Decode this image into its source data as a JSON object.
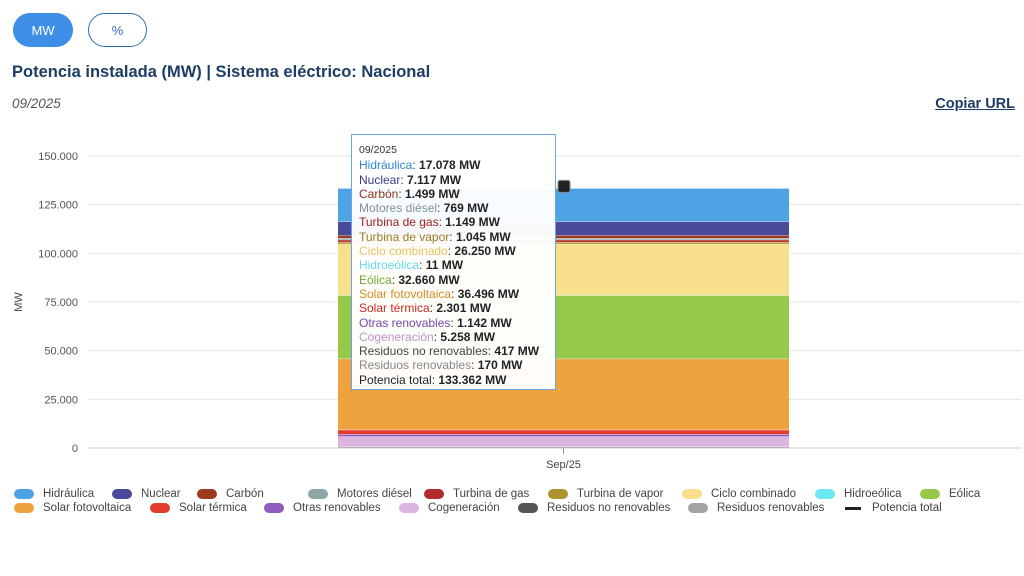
{
  "controls": {
    "mw_label": "MW",
    "pct_label": "%"
  },
  "header": {
    "title": "Potencia instalada (MW) | Sistema eléctrico: Nacional",
    "date": "09/2025",
    "copy_url": "Copiar URL"
  },
  "tooltip": {
    "date": "09/2025",
    "rows": [
      {
        "name": "Hidráulica",
        "value": "17.078 MW"
      },
      {
        "name": "Nuclear",
        "value": "7.117 MW"
      },
      {
        "name": "Carbón",
        "value": "1.499 MW"
      },
      {
        "name": "Motores diésel",
        "value": "769 MW"
      },
      {
        "name": "Turbina de gas",
        "value": "1.149 MW"
      },
      {
        "name": "Turbina de vapor",
        "value": "1.045 MW"
      },
      {
        "name": "Ciclo combinado",
        "value": "26.250 MW"
      },
      {
        "name": "Hidroeólica",
        "value": "11 MW"
      },
      {
        "name": "Eólica",
        "value": "32.660 MW"
      },
      {
        "name": "Solar fotovoltaica",
        "value": "36.496 MW"
      },
      {
        "name": "Solar térmica",
        "value": "2.301 MW"
      },
      {
        "name": "Otras renovables",
        "value": "1.142 MW"
      },
      {
        "name": "Cogeneración",
        "value": "5.258 MW"
      },
      {
        "name": "Residuos no renovables",
        "value": "417 MW"
      },
      {
        "name": "Residuos renovables",
        "value": "170 MW"
      },
      {
        "name": "Potencia total",
        "value": "133.362 MW"
      }
    ]
  },
  "chart_data": {
    "type": "bar",
    "stacked": true,
    "categories": [
      "Sep/25"
    ],
    "ylabel": "MW",
    "ylim": [
      0,
      150000
    ],
    "yticks": [
      "0",
      "25.000",
      "50.000",
      "75.000",
      "100.000",
      "125.000",
      "150.000"
    ],
    "ytick_values": [
      0,
      25000,
      50000,
      75000,
      100000,
      125000,
      150000
    ],
    "grid": true,
    "legend_position": "bottom",
    "series": [
      {
        "name": "Hidráulica",
        "values": [
          17078
        ],
        "color": "#4ea3e5"
      },
      {
        "name": "Nuclear",
        "values": [
          7117
        ],
        "color": "#4a4a9c"
      },
      {
        "name": "Carbón",
        "values": [
          1499
        ],
        "color": "#9c3b1f"
      },
      {
        "name": "Motores diésel",
        "values": [
          769
        ],
        "color": "#8fa6a6"
      },
      {
        "name": "Turbina de gas",
        "values": [
          1149
        ],
        "color": "#b32a2a"
      },
      {
        "name": "Turbina de vapor",
        "values": [
          1045
        ],
        "color": "#b0922e"
      },
      {
        "name": "Ciclo combinado",
        "values": [
          26250
        ],
        "color": "#f8df8b"
      },
      {
        "name": "Hidroeólica",
        "values": [
          11
        ],
        "color": "#6fe8f6"
      },
      {
        "name": "Eólica",
        "values": [
          32660
        ],
        "color": "#96c84a"
      },
      {
        "name": "Solar fotovoltaica",
        "values": [
          36496
        ],
        "color": "#efa33f"
      },
      {
        "name": "Solar térmica",
        "values": [
          2301
        ],
        "color": "#e23d2d"
      },
      {
        "name": "Otras renovables",
        "values": [
          1142
        ],
        "color": "#8e5bbf"
      },
      {
        "name": "Cogeneración",
        "values": [
          5258
        ],
        "color": "#dcb4e0"
      },
      {
        "name": "Residuos no renovables",
        "values": [
          417
        ],
        "color": "#555555"
      },
      {
        "name": "Residuos renovables",
        "values": [
          170
        ],
        "color": "#a3a3a3"
      }
    ],
    "total": {
      "name": "Potencia total",
      "values": [
        133362
      ],
      "color": "#222222"
    },
    "tooltip_colors": {
      "Hidráulica": "#2e86d6",
      "Nuclear": "#3a3a8c",
      "Carbón": "#8a3318",
      "Motores diésel": "#7f9494",
      "Turbina de gas": "#a02020",
      "Turbina de vapor": "#9a7e1e",
      "Ciclo combinado": "#e8c35c",
      "Hidroeólica": "#5fdcec",
      "Eólica": "#6eaa2e",
      "Solar fotovoltaica": "#d98a1e",
      "Solar térmica": "#c92a20",
      "Otras renovables": "#7a46ad",
      "Cogeneración": "#c38fca",
      "Residuos no renovables": "#444444",
      "Residuos renovables": "#888888",
      "Potencia total": "#222222"
    }
  }
}
